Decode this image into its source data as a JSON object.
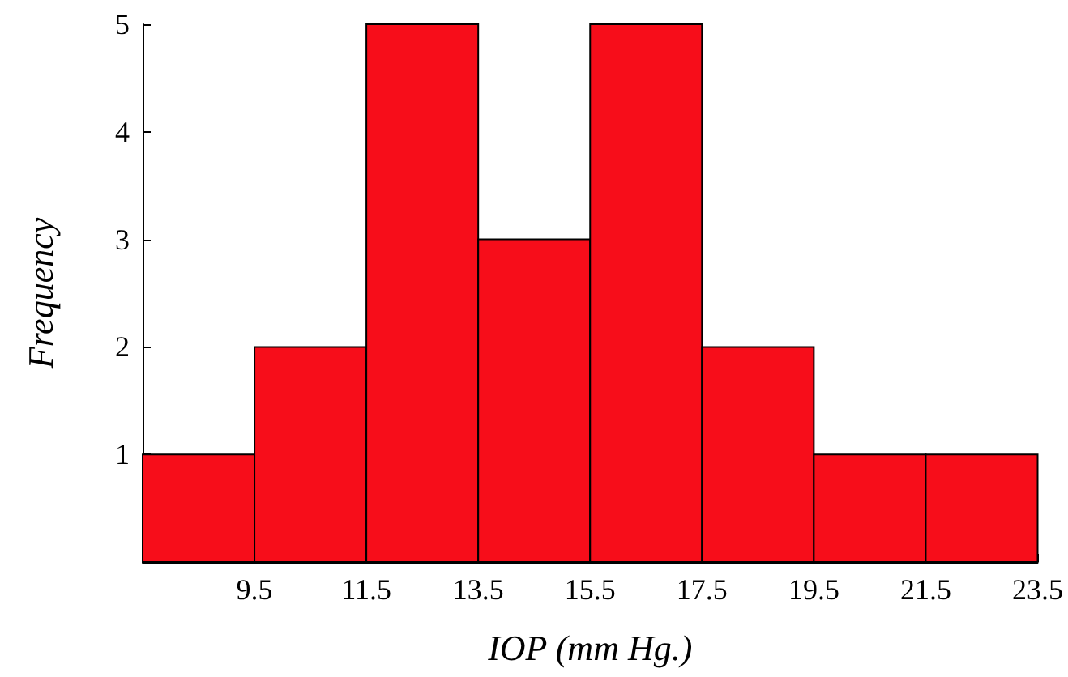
{
  "chart_data": {
    "type": "histogram",
    "xlabel": "IOP (mm Hg.)",
    "ylabel": "Frequency",
    "bins": [
      7.5,
      9.5,
      11.5,
      13.5,
      15.5,
      17.5,
      19.5,
      21.5,
      23.5
    ],
    "values": [
      1,
      2,
      5,
      3,
      5,
      2,
      1,
      1
    ],
    "color": "#f70d1a",
    "xlim": [
      7.5,
      23.5
    ],
    "xticks": [
      9.5,
      11.5,
      13.5,
      15.5,
      17.5,
      19.5,
      21.5,
      23.5
    ],
    "ylim": [
      0,
      5
    ],
    "yticks": [
      1,
      2,
      3,
      4,
      5
    ],
    "grid": false
  }
}
